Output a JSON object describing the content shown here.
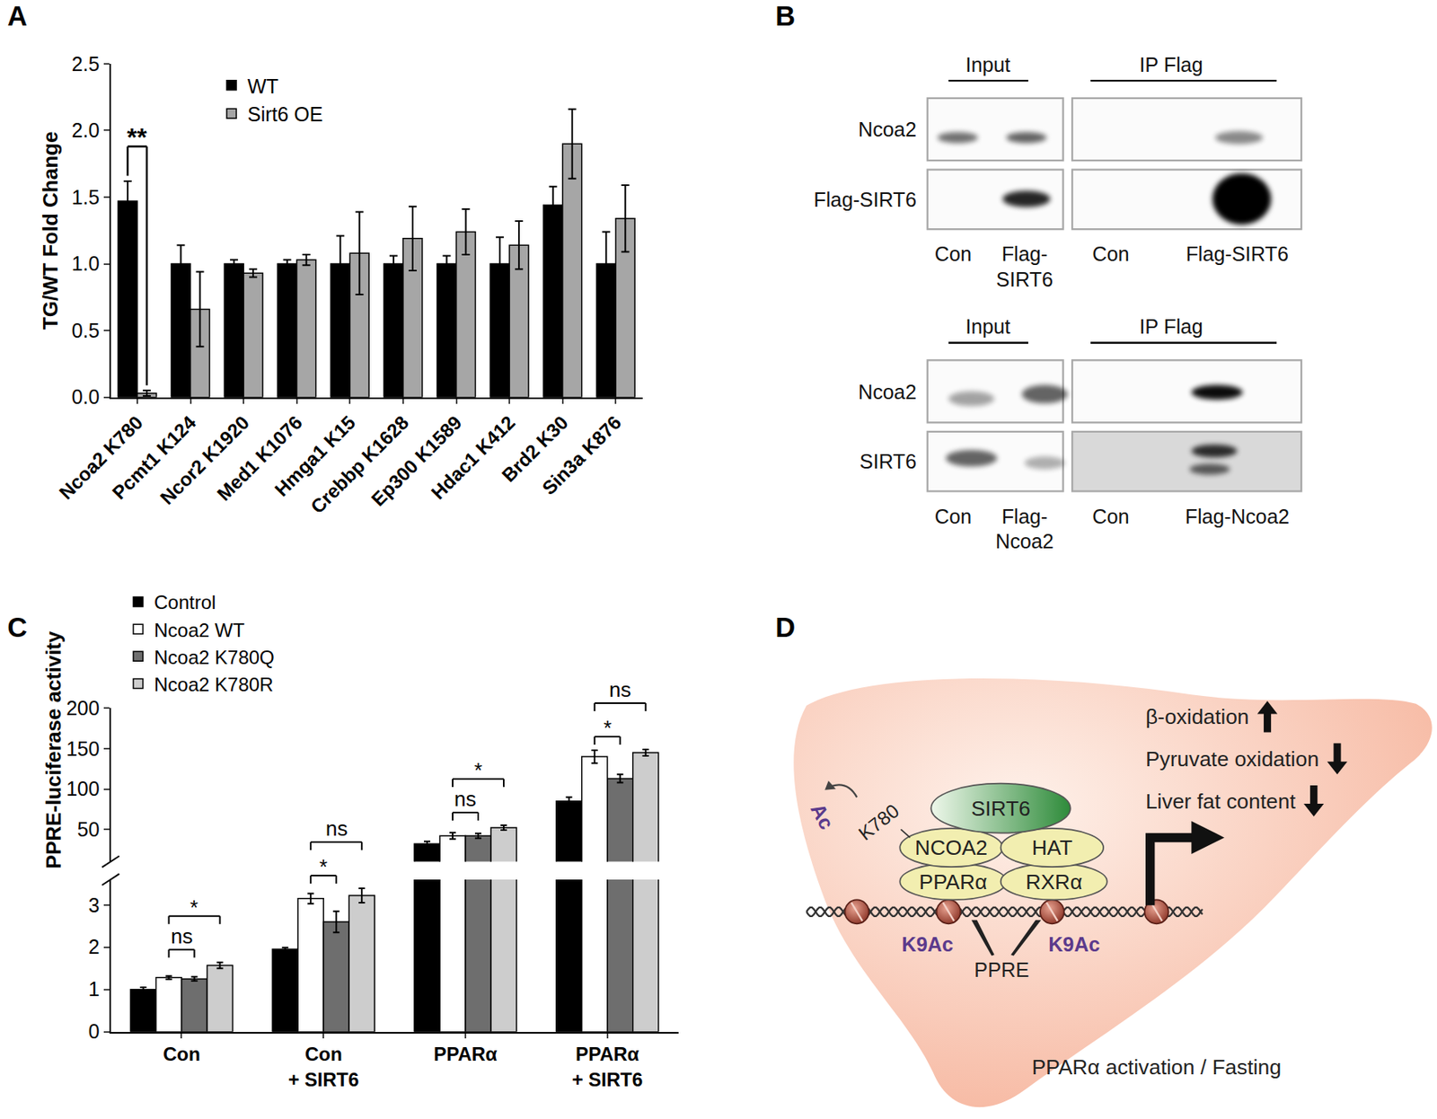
{
  "panel_labels": [
    "A",
    "B",
    "C",
    "D"
  ],
  "chart_data": [
    {
      "type": "bar",
      "categories": [
        "Ncoa2 K780",
        "Pcmt1 K124",
        "Ncor2 K1920",
        "Med1 K1076",
        "Hmga1 K15",
        "Crebbp K1628",
        "Ep300 K1589",
        "Hdac1 K412",
        "Brd2 K30",
        "Sin3a K876"
      ],
      "series": [
        {
          "name": "WT",
          "color": "#000000",
          "values": [
            1.47,
            1.0,
            1.0,
            1.0,
            1.0,
            1.0,
            1.0,
            1.0,
            1.44,
            1.0
          ],
          "errors": [
            0.15,
            0.14,
            0.03,
            0.03,
            0.21,
            0.06,
            0.06,
            0.2,
            0.14,
            0.24
          ]
        },
        {
          "name": "Sirt6 OE",
          "color": "#a6a6a6",
          "values": [
            0.03,
            0.66,
            0.93,
            1.03,
            1.08,
            1.19,
            1.24,
            1.14,
            1.9,
            1.34
          ],
          "errors": [
            0.02,
            0.28,
            0.03,
            0.04,
            0.31,
            0.24,
            0.17,
            0.18,
            0.26,
            0.25
          ]
        }
      ],
      "ylabel": "TG/WT Fold Change",
      "ylim": [
        0,
        2.5
      ],
      "yticks": [
        {
          "value": 0,
          "label": "0.0"
        },
        0.5,
        {
          "value": 1,
          "label": "1.0"
        },
        1.5,
        {
          "value": 2,
          "label": "2.0"
        },
        2.5
      ],
      "grid": false,
      "legend": "top",
      "annotations": [
        {
          "category": "Ncoa2 K780",
          "between": [
            "WT",
            "Sirt6 OE"
          ],
          "text": "**"
        }
      ]
    },
    {
      "type": "bar",
      "categories": [
        "Con",
        "Con\n+ SIRT6",
        "PPARα",
        "PPARα\n+ SIRT6"
      ],
      "series": [
        {
          "name": "Control",
          "color": "#000000",
          "values": [
            1.0,
            1.95,
            32,
            85
          ],
          "errors": [
            0.05,
            0.04,
            3,
            5
          ]
        },
        {
          "name": "Ncoa2 WT",
          "color": "#ffffff",
          "values": [
            1.28,
            3.15,
            42,
            140
          ],
          "errors": [
            0.04,
            0.12,
            4,
            8
          ]
        },
        {
          "name": "Ncoa2 K780Q",
          "color": "#6e6e6e",
          "values": [
            1.25,
            2.6,
            42,
            113
          ],
          "errors": [
            0.05,
            0.25,
            3,
            5
          ]
        },
        {
          "name": "Ncoa2 K780R",
          "color": "#cdcdcd",
          "values": [
            1.57,
            3.22,
            52,
            145
          ],
          "errors": [
            0.07,
            0.17,
            3,
            4
          ]
        }
      ],
      "ylabel": "PPRE-luciferase activity",
      "ylim": [
        [
          0,
          3.6
        ],
        [
          10,
          200
        ]
      ],
      "yticks": [
        [
          0,
          1,
          2,
          3
        ],
        [
          50,
          100,
          150,
          200
        ]
      ],
      "grid": false,
      "legend": "top left",
      "annotations": [
        {
          "category": "Con",
          "between": [
            "Ncoa2 WT",
            "Ncoa2 K780Q"
          ],
          "text": "ns"
        },
        {
          "category": "Con",
          "between": [
            "Ncoa2 WT",
            "Ncoa2 K780R"
          ],
          "text": "*"
        },
        {
          "category": "Con\n+ SIRT6",
          "between": [
            "Ncoa2 WT",
            "Ncoa2 K780Q"
          ],
          "text": "*"
        },
        {
          "category": "Con\n+ SIRT6",
          "between": [
            "Ncoa2 WT",
            "Ncoa2 K780R"
          ],
          "text": "ns"
        },
        {
          "category": "PPARα",
          "between": [
            "Ncoa2 WT",
            "Ncoa2 K780Q"
          ],
          "text": "ns"
        },
        {
          "category": "PPARα",
          "between": [
            "Ncoa2 WT",
            "Ncoa2 K780R"
          ],
          "text": "*"
        },
        {
          "category": "PPARα\n+ SIRT6",
          "between": [
            "Ncoa2 WT",
            "Ncoa2 K780Q"
          ],
          "text": "*"
        },
        {
          "category": "PPARα\n+ SIRT6",
          "between": [
            "Ncoa2 WT",
            "Ncoa2 K780R"
          ],
          "text": "ns"
        }
      ]
    }
  ],
  "blots": [
    {
      "headers": [
        "Input",
        "IP Flag"
      ],
      "rows": [
        "Ncoa2",
        "Flag-SIRT6"
      ],
      "lanes": [
        "Con",
        "Flag-\nSIRT6",
        "Con",
        "Flag-SIRT6"
      ]
    },
    {
      "headers": [
        "Input",
        "IP Flag"
      ],
      "rows": [
        "Ncoa2",
        "SIRT6"
      ],
      "lanes": [
        "Con",
        "Flag-\nNcoa2",
        "Con",
        "Flag-Ncoa2"
      ]
    }
  ],
  "diagram": {
    "complex": {
      "top": "SIRT6",
      "middle": [
        "NCOA2",
        "HAT"
      ],
      "bottom": [
        "PPARα",
        "RXRα"
      ]
    },
    "site": "K780",
    "modification": "Ac",
    "histone_marks": [
      "K9Ac",
      "K9Ac"
    ],
    "element": "PPRE",
    "effects": [
      {
        "text": "β-oxidation",
        "direction": "up"
      },
      {
        "text": "Pyruvate oxidation",
        "direction": "down"
      },
      {
        "text": "Liver fat content",
        "direction": "down"
      }
    ],
    "caption": "PPARα activation / Fasting"
  }
}
